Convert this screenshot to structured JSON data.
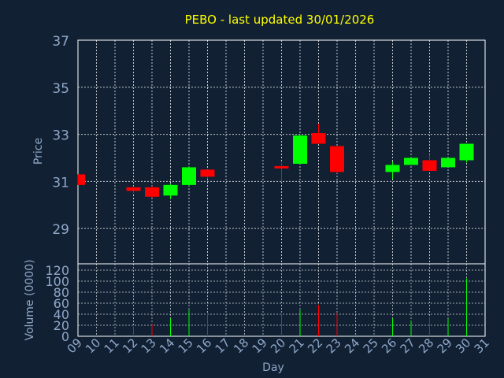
{
  "chart_data": {
    "type": "candlestick",
    "title": "PEBO - last updated 30/01/2026",
    "xlabel": "Day",
    "price_ylabel": "Price",
    "volume_ylabel": "Volume (0000)",
    "x_ticks": [
      "09",
      "10",
      "11",
      "12",
      "13",
      "14",
      "15",
      "16",
      "17",
      "18",
      "19",
      "20",
      "21",
      "22",
      "23",
      "24",
      "25",
      "26",
      "27",
      "28",
      "29",
      "30",
      "31"
    ],
    "price_ticks": [
      "29",
      "31",
      "33",
      "35",
      "37"
    ],
    "volume_ticks": [
      "0",
      "20",
      "40",
      "60",
      "80",
      "100",
      "120"
    ],
    "price_ylim": [
      27.5,
      37
    ],
    "volume_ylim": [
      0,
      120
    ],
    "xlim": [
      9,
      31
    ],
    "grid": true,
    "candles": [
      {
        "day": 9,
        "open": 31.3,
        "close": 30.85,
        "high": 31.3,
        "low": 30.85,
        "volume": 0
      },
      {
        "day": 12,
        "open": 30.75,
        "close": 30.6,
        "high": 30.8,
        "low": 30.5,
        "volume": 18
      },
      {
        "day": 13,
        "open": 30.75,
        "close": 30.35,
        "high": 30.8,
        "low": 30.3,
        "volume": 22
      },
      {
        "day": 14,
        "open": 30.4,
        "close": 30.85,
        "high": 30.9,
        "low": 30.25,
        "volume": 32
      },
      {
        "day": 15,
        "open": 30.85,
        "close": 31.6,
        "high": 31.65,
        "low": 30.8,
        "volume": 48
      },
      {
        "day": 16,
        "open": 31.5,
        "close": 31.2,
        "high": 31.5,
        "low": 31.1,
        "volume": 43
      },
      {
        "day": 20,
        "open": 31.65,
        "close": 31.55,
        "high": 31.8,
        "low": 31.0,
        "volume": 40
      },
      {
        "day": 21,
        "open": 31.75,
        "close": 32.95,
        "high": 33.0,
        "low": 31.75,
        "volume": 48
      },
      {
        "day": 22,
        "open": 33.05,
        "close": 32.6,
        "high": 33.45,
        "low": 32.6,
        "volume": 57
      },
      {
        "day": 23,
        "open": 32.5,
        "close": 31.4,
        "high": 32.5,
        "low": 31.35,
        "volume": 42
      },
      {
        "day": 26,
        "open": 31.4,
        "close": 31.7,
        "high": 31.85,
        "low": 31.1,
        "volume": 32
      },
      {
        "day": 27,
        "open": 31.7,
        "close": 32.0,
        "high": 32.05,
        "low": 31.7,
        "volume": 28
      },
      {
        "day": 28,
        "open": 31.9,
        "close": 31.45,
        "high": 32.15,
        "low": 31.45,
        "volume": 34
      },
      {
        "day": 29,
        "open": 31.6,
        "close": 32.0,
        "high": 32.0,
        "low": 31.6,
        "volume": 32
      },
      {
        "day": 30,
        "open": 31.9,
        "close": 32.6,
        "high": 32.6,
        "low": 31.8,
        "volume": 105
      }
    ],
    "colors": {
      "background": "#112033",
      "up": "#00ff00",
      "down": "#ff0000",
      "title": "#ffff00",
      "axis_text": "#8fa8c8",
      "grid": "#ffffff"
    }
  }
}
